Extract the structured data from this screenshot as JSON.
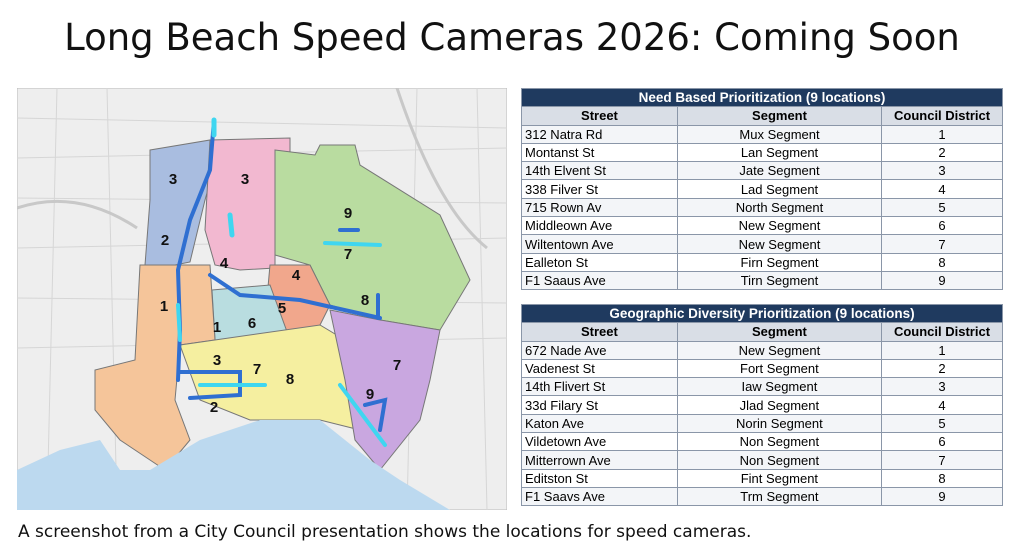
{
  "title": "Long Beach Speed Cameras 2026: Coming Soon",
  "map": {
    "labels": [
      "3",
      "3",
      "9",
      "2",
      "7",
      "4",
      "4",
      "8",
      "1",
      "5",
      "1",
      "6",
      "3",
      "7",
      "8",
      "2",
      "7",
      "9"
    ]
  },
  "tables": [
    {
      "title": "Need Based Prioritization (9 locations)",
      "columns": [
        "Street",
        "Segment",
        "Council District"
      ],
      "rows": [
        [
          "312 Natra Rd",
          "Mux Segment",
          1
        ],
        [
          "Montanst St",
          "Lan Segment",
          2
        ],
        [
          "14th Elvent St",
          "Jate Segment",
          3
        ],
        [
          "338 Filver St",
          "Lad Segment",
          4
        ],
        [
          "715 Rown Av",
          "North Segment",
          5
        ],
        [
          "Middleown Ave",
          "New Segment",
          6
        ],
        [
          "Wiltentown Ave",
          "New Segment",
          7
        ],
        [
          "Ealleton St",
          "Firn Segment",
          8
        ],
        [
          "F1 Saaus Ave",
          "Tirn Segment",
          9
        ]
      ]
    },
    {
      "title": "Geographic Diversity Prioritization (9 locations)",
      "columns": [
        "Street",
        "Segment",
        "Council District"
      ],
      "rows": [
        [
          "672 Nade Ave",
          "New Segment",
          1
        ],
        [
          "Vadenest St",
          "Fort Segment",
          2
        ],
        [
          "14th Flivert St",
          "Iaw Segment",
          3
        ],
        [
          "33d Filary St",
          "Jlad Segment",
          4
        ],
        [
          "Katon Ave",
          "Norin Segment",
          5
        ],
        [
          "Vildetown Ave",
          "Non Segment",
          6
        ],
        [
          "Mitterrown Ave",
          "Non Segment",
          7
        ],
        [
          "Editston St",
          "Fint Segment",
          8
        ],
        [
          "F1 Saavs Ave",
          "Trm Segment",
          9
        ]
      ]
    }
  ],
  "caption": "A screenshot from a City Council presentation shows the locations for speed cameras."
}
